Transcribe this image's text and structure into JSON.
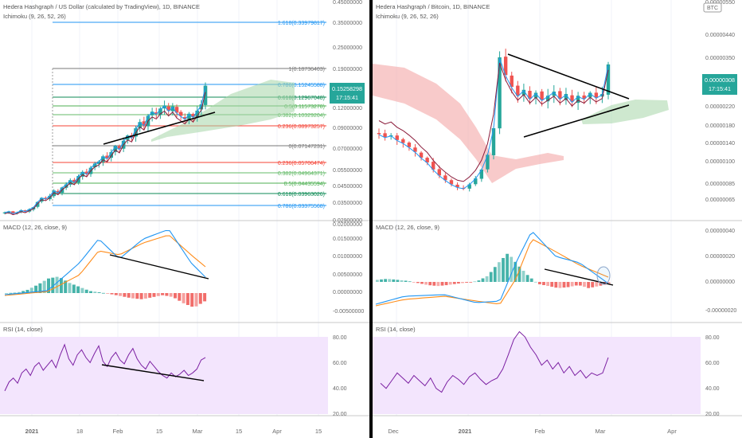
{
  "colors": {
    "up": "#26a69a",
    "down": "#ef5350",
    "ichimoku_conversion": "#2196f3",
    "ichimoku_base": "#8b1c3b",
    "cloud_green": "#a5d6a7",
    "cloud_red": "#f4a6a6",
    "macd": "#2196f3",
    "signal": "#ff8c1a",
    "rsi": "#7b1fa2",
    "rsi_band": "#f3e5fd",
    "price_label_bg": "#26a69a",
    "axis_text": "#6b6b6b",
    "fib_blue": "#2196f3",
    "fib_green": "#4caf50",
    "fib_red": "#f44336",
    "fib_gray": "#787878"
  },
  "left": {
    "title": "Hedera Hashgraph / US Dollar (calculated by TradingView), 1D, BINANCE",
    "indicator": "Ichimoku (9, 26, 52, 26)",
    "macd_label": "MACD (12, 26, close, 9)",
    "rsi_label": "RSI (14, close)",
    "price_label": "0.15258298",
    "timer_label": "17:15:41",
    "x_labels": [
      "2021",
      "18",
      "Feb",
      "15",
      "Mar",
      "15",
      "Apr",
      "15"
    ],
    "price_axis": [
      "0.45000000",
      "0.35000000",
      "0.25000000",
      "0.19000000",
      "0.15000000",
      "0.12000000",
      "0.09000000",
      "0.07000000",
      "0.05500000",
      "0.04500000",
      "0.03500000",
      "0.02900000"
    ],
    "macd_axis": [
      "0.02000000",
      "0.01500000",
      "0.01000000",
      "0.00500000",
      "0.00000000",
      "-0.00500000"
    ],
    "rsi_axis": [
      "80.00",
      "60.00",
      "40.00",
      "20.00"
    ],
    "fib_levels": [
      {
        "label": "1.618(0.33979817)",
        "color": "#2196f3"
      },
      {
        "label": "1(0.18736403)",
        "color": "#787878"
      },
      {
        "label": "0.786(0.15245588)",
        "color": "#2196f3"
      },
      {
        "label": "0.618(0.12967048)",
        "color": "#0c8a54"
      },
      {
        "label": "0.5(0.11573278)",
        "color": "#4caf50"
      },
      {
        "label": "0.382(0.10329204)",
        "color": "#66bb6a"
      },
      {
        "label": "0.236(0.08973257)",
        "color": "#f44336"
      },
      {
        "label": "0(0.07147231)",
        "color": "#787878"
      },
      {
        "label": "0.236(0.05706474)",
        "color": "#f44336"
      },
      {
        "label": "0.382(0.04964371)",
        "color": "#66bb6a"
      },
      {
        "label": "0.5(0.04435594)",
        "color": "#4caf50"
      },
      {
        "label": "0.618(0.03963026)",
        "color": "#0c8a54"
      },
      {
        "label": "0.786(0.03375568)",
        "color": "#2196f3"
      }
    ]
  },
  "right": {
    "title": "Hedera Hashgraph / Bitcoin, 1D, BINANCE",
    "indicator": "Ichimoku (9, 26, 52, 26)",
    "macd_label": "MACD (12, 26, close, 9)",
    "rsi_label": "RSI (14, close)",
    "btc_badge": "BTC",
    "price_label": "0.00000308",
    "timer_label": "17:15:41",
    "x_labels": [
      "Dec",
      "2021",
      "Feb",
      "Mar",
      "Apr"
    ],
    "price_axis": [
      "0.00000550",
      "0.00000440",
      "0.00000350",
      "0.00000280",
      "0.00000220",
      "0.00000180",
      "0.00000140",
      "0.00000100",
      "0.00000085",
      "0.00000065"
    ],
    "macd_axis": [
      "0.00000040",
      "0.00000020",
      "0.00000000",
      "-0.00000020"
    ],
    "rsi_axis": [
      "80.00",
      "60.00",
      "40.00",
      "20.00"
    ]
  },
  "chart_data": [
    {
      "type": "candlestick",
      "title": "Hedera Hashgraph / US Dollar (calculated by TradingView), 1D, BINANCE",
      "indicators": [
        "Ichimoku (9, 26, 52, 26)",
        "MACD (12, 26, close, 9)",
        "RSI (14, close)"
      ],
      "last_price": 0.15258298,
      "close_series_usd": [
        0.031,
        0.032,
        0.03,
        0.031,
        0.033,
        0.032,
        0.034,
        0.036,
        0.041,
        0.045,
        0.044,
        0.047,
        0.052,
        0.05,
        0.055,
        0.058,
        0.062,
        0.06,
        0.066,
        0.07,
        0.068,
        0.074,
        0.078,
        0.08,
        0.085,
        0.083,
        0.089,
        0.095,
        0.092,
        0.1,
        0.105,
        0.103,
        0.112,
        0.118,
        0.115,
        0.124,
        0.128,
        0.126,
        0.131,
        0.134,
        0.129,
        0.133,
        0.127,
        0.124,
        0.121,
        0.126,
        0.123,
        0.129,
        0.135,
        0.153
      ],
      "fib_retracements": [
        {
          "ratio": 1.618,
          "price": 0.33979817
        },
        {
          "ratio": 1,
          "price": 0.18736403
        },
        {
          "ratio": 0.786,
          "price": 0.15245588
        },
        {
          "ratio": 0.618,
          "price": 0.12967048
        },
        {
          "ratio": 0.5,
          "price": 0.11573278
        },
        {
          "ratio": 0.382,
          "price": 0.10329204
        },
        {
          "ratio": 0.236,
          "price": 0.08973257
        },
        {
          "ratio": 0,
          "price": 0.07147231
        },
        {
          "ratio": 0.236,
          "price": 0.05706474
        },
        {
          "ratio": 0.382,
          "price": 0.04964371
        },
        {
          "ratio": 0.5,
          "price": 0.04435594
        },
        {
          "ratio": 0.618,
          "price": 0.03963026
        },
        {
          "ratio": 0.786,
          "price": 0.03375568
        }
      ],
      "rsi_series": [
        38,
        45,
        48,
        44,
        52,
        55,
        50,
        57,
        60,
        54,
        58,
        62,
        56,
        66,
        74,
        63,
        58,
        66,
        70,
        64,
        60,
        67,
        73,
        61,
        57,
        64,
        68,
        62,
        59,
        66,
        71,
        63,
        58,
        55,
        61,
        57,
        53,
        50,
        48,
        52,
        49,
        51,
        54,
        50,
        52,
        55,
        62,
        64
      ],
      "rsi_range": [
        20,
        80
      ]
    },
    {
      "type": "candlestick",
      "title": "Hedera Hashgraph / Bitcoin, 1D, BINANCE",
      "indicators": [
        "Ichimoku (9, 26, 52, 26)",
        "MACD (12, 26, close, 9)",
        "RSI (14, close)"
      ],
      "last_price": 3.08e-06,
      "close_series_btc": [
        1.9e-06,
        1.85e-06,
        1.88e-06,
        1.8e-06,
        1.75e-06,
        1.68e-06,
        1.6e-06,
        1.5e-06,
        1.42e-06,
        1.3e-06,
        1.2e-06,
        1.12e-06,
        1.05e-06,
        1e-06,
        9.8e-07,
        1.05e-06,
        1.15e-06,
        1.3e-06,
        1.55e-06,
        2e-06,
        3.2e-06,
        2.9e-06,
        2.7e-06,
        2.55e-06,
        2.65e-06,
        2.5e-06,
        2.6e-06,
        2.48e-06,
        2.55e-06,
        2.62e-06,
        2.5e-06,
        2.58e-06,
        2.45e-06,
        2.55e-06,
        2.5e-06,
        2.6e-06,
        2.52e-06,
        2.58e-06,
        3.08e-06
      ],
      "rsi_series": [
        44,
        40,
        46,
        52,
        48,
        44,
        50,
        46,
        42,
        48,
        40,
        37,
        45,
        50,
        47,
        43,
        49,
        52,
        47,
        43,
        46,
        48,
        55,
        66,
        78,
        84,
        80,
        72,
        66,
        58,
        62,
        55,
        60,
        52,
        57,
        50,
        54,
        48,
        52,
        50,
        52,
        64
      ],
      "rsi_range": [
        20,
        80
      ]
    }
  ]
}
